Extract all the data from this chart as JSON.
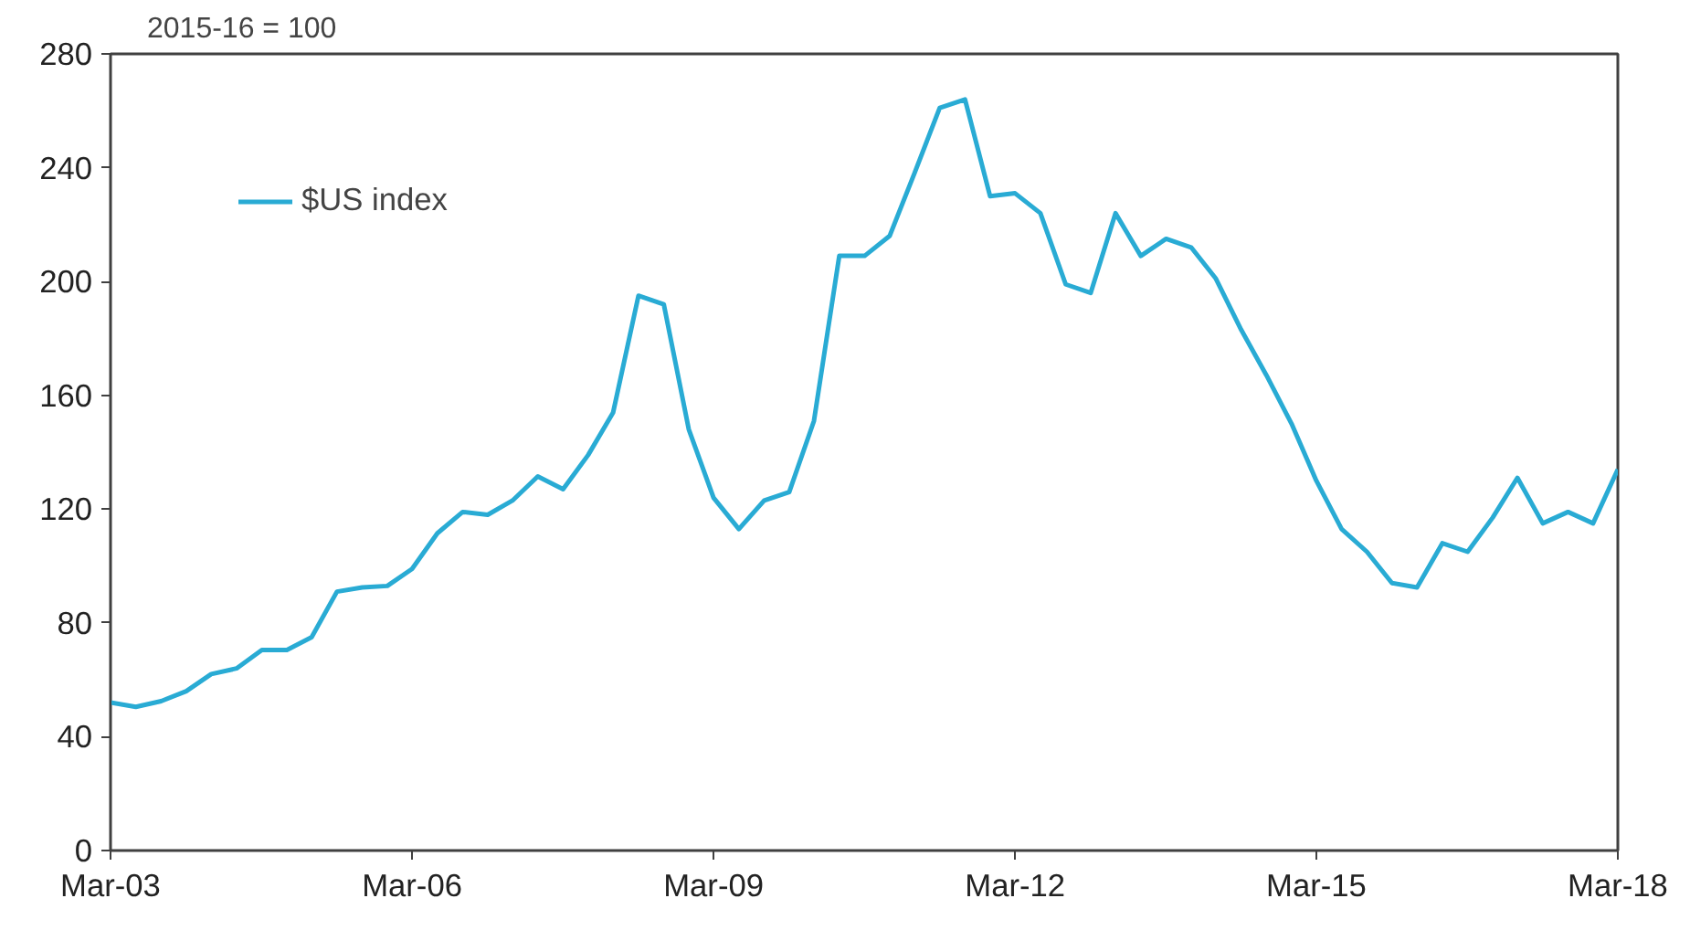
{
  "chart_data": {
    "type": "line",
    "ylabel": "2015-16 = 100",
    "x": [
      "2003-03",
      "2003-06",
      "2003-09",
      "2003-12",
      "2004-03",
      "2004-06",
      "2004-09",
      "2004-12",
      "2005-03",
      "2005-06",
      "2005-09",
      "2005-12",
      "2006-03",
      "2006-06",
      "2006-09",
      "2006-12",
      "2007-03",
      "2007-06",
      "2007-09",
      "2007-12",
      "2008-03",
      "2008-06",
      "2008-09",
      "2008-12",
      "2009-03",
      "2009-06",
      "2009-09",
      "2009-12",
      "2010-03",
      "2010-06",
      "2010-09",
      "2010-12",
      "2011-03",
      "2011-06",
      "2011-09",
      "2011-12",
      "2012-03",
      "2012-06",
      "2012-09",
      "2012-12",
      "2013-03",
      "2013-06",
      "2013-09",
      "2013-12",
      "2014-03",
      "2014-06",
      "2014-09",
      "2014-12",
      "2015-03",
      "2015-06",
      "2015-09",
      "2015-12",
      "2016-03",
      "2016-06",
      "2016-09",
      "2016-12",
      "2017-03",
      "2017-06",
      "2017-09",
      "2017-12",
      "2018-03"
    ],
    "series": [
      {
        "name": "$US index",
        "color": "#29abd4",
        "values": [
          52,
          50.5,
          52.5,
          56,
          62,
          64,
          70.5,
          70.5,
          75,
          91,
          92.5,
          93,
          99,
          111.5,
          119,
          118,
          123,
          131.5,
          127,
          139,
          154,
          195,
          192,
          148,
          124,
          113,
          123,
          126,
          151,
          209,
          209,
          216,
          238,
          261,
          264,
          230,
          231,
          224,
          199,
          196,
          224,
          209,
          215,
          212,
          201,
          183,
          167,
          150,
          130,
          113,
          105,
          94,
          92.5,
          108,
          105,
          117,
          131,
          115,
          119,
          115,
          134
        ]
      }
    ],
    "xlim": [
      "2003-03",
      "2018-03"
    ],
    "xticks": [
      {
        "value": "2003-03",
        "label": "Mar-03"
      },
      {
        "value": "2006-03",
        "label": "Mar-06"
      },
      {
        "value": "2009-03",
        "label": "Mar-09"
      },
      {
        "value": "2012-03",
        "label": "Mar-12"
      },
      {
        "value": "2015-03",
        "label": "Mar-15"
      },
      {
        "value": "2018-03",
        "label": "Mar-18"
      }
    ],
    "ylim": [
      0,
      280
    ],
    "yticks": [
      0,
      40,
      80,
      120,
      160,
      200,
      240,
      280
    ],
    "legend": "top left",
    "grid": false,
    "marker": "none",
    "line_style": "solid"
  }
}
